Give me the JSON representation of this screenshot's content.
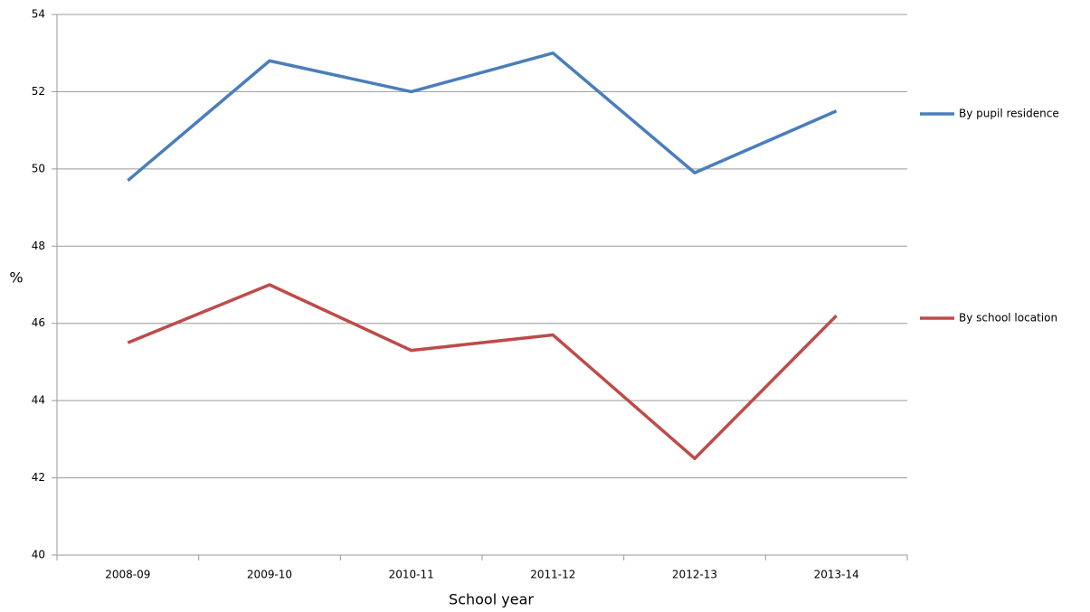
{
  "chart_data": {
    "type": "line",
    "x_label": "School year",
    "y_label": "%",
    "categories": [
      "2008-09",
      "2009-10",
      "2010-11",
      "2011-12",
      "2012-13",
      "2013-14"
    ],
    "series": [
      {
        "name": "By pupil residence",
        "color": "#4a7ebb",
        "values": [
          49.7,
          52.8,
          52.0,
          53.0,
          49.9,
          51.5
        ]
      },
      {
        "name": "By school location",
        "color": "#be4b48",
        "values": [
          45.5,
          47.0,
          45.3,
          45.7,
          42.5,
          46.2
        ]
      }
    ],
    "ylim": [
      40,
      54
    ],
    "yticks": [
      40,
      42,
      44,
      46,
      48,
      50,
      52,
      54
    ],
    "grid": true,
    "legend": "right"
  }
}
